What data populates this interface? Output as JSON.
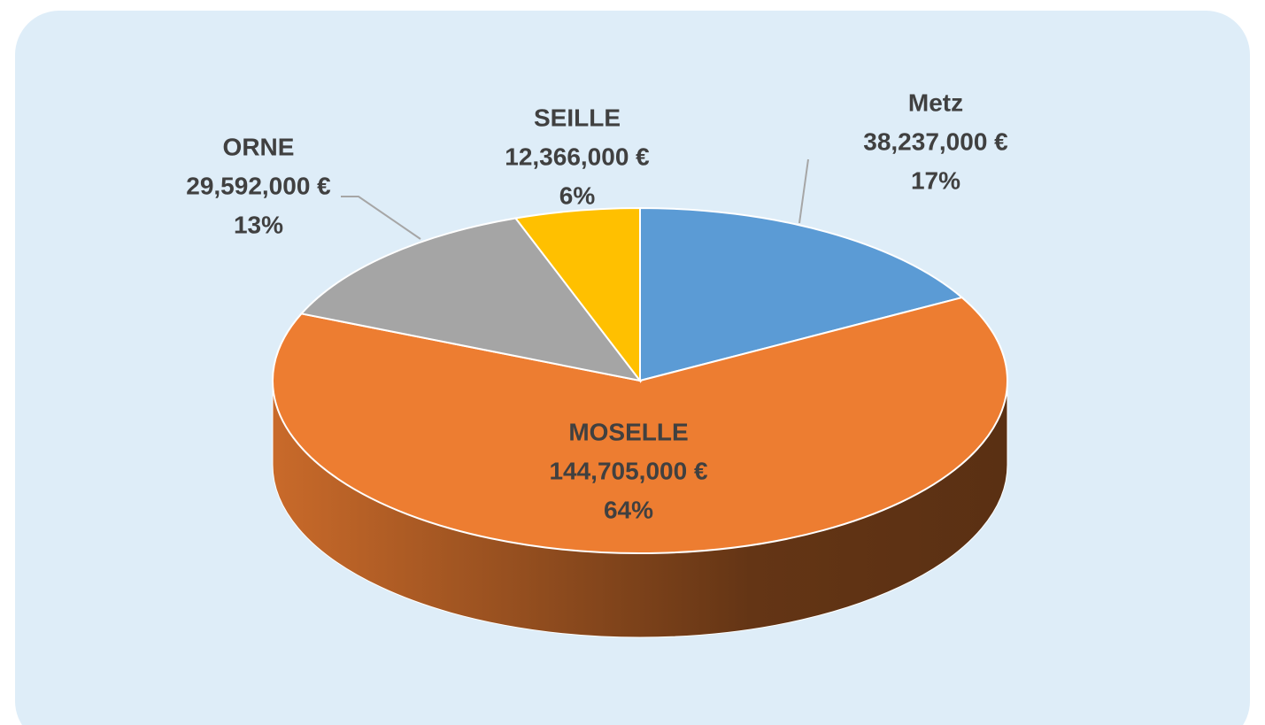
{
  "chart_data": {
    "type": "pie",
    "categories": [
      "Metz",
      "MOSELLE",
      "ORNE",
      "SEILLE"
    ],
    "values": [
      38237000,
      144705000,
      29592000,
      12366000
    ],
    "value_labels": [
      "38,237,000 €",
      "144,705,000 €",
      "29,592,000 €",
      "12,366,000 €"
    ],
    "percentages": [
      17,
      64,
      13,
      6
    ],
    "percentage_labels": [
      "17%",
      "64%",
      "13%",
      "6%"
    ],
    "colors": [
      "#5b9bd5",
      "#ed7d31",
      "#a5a5a5",
      "#ffc000"
    ]
  }
}
